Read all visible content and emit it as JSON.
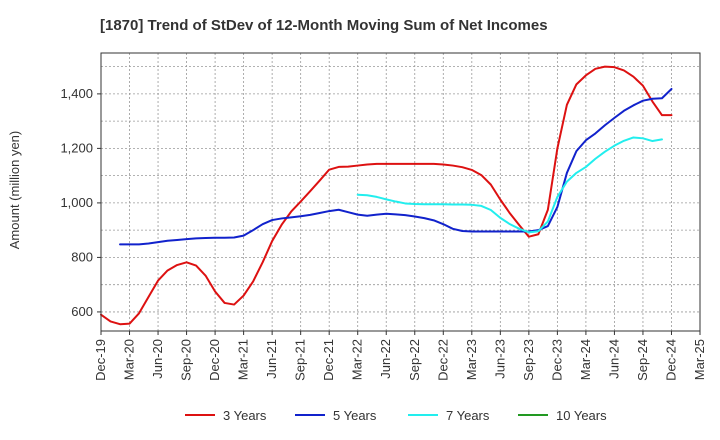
{
  "chart_data": {
    "type": "line",
    "title": "[1870]  Trend of StDev of 12-Month Moving Sum of Net Incomes",
    "xlabel": "",
    "ylabel": "Amount (million yen)",
    "ylim": [
      530,
      1550
    ],
    "y_ticks": [
      600,
      800,
      1000,
      1200,
      1400
    ],
    "y_tick_labels": [
      "600",
      "800",
      "1,000",
      "1,200",
      "1,400"
    ],
    "x_tick_labels": [
      "Dec-19",
      "Mar-20",
      "Jun-20",
      "Sep-20",
      "Dec-20",
      "Mar-21",
      "Jun-21",
      "Sep-21",
      "Dec-21",
      "Mar-22",
      "Jun-22",
      "Sep-22",
      "Dec-22",
      "Mar-23",
      "Jun-23",
      "Sep-23",
      "Dec-23",
      "Mar-24",
      "Jun-24",
      "Sep-24",
      "Dec-24",
      "Mar-25"
    ],
    "x_range_months": [
      "Dec-19",
      "Mar-25"
    ],
    "grid": true,
    "legend_position": "bottom",
    "series": [
      {
        "name": "3 Years",
        "color": "#dd1111",
        "start": "Dec-19",
        "values": [
          590,
          565,
          555,
          557,
          595,
          655,
          715,
          752,
          772,
          782,
          770,
          733,
          675,
          633,
          627,
          660,
          712,
          782,
          860,
          920,
          968,
          1005,
          1043,
          1082,
          1122,
          1132,
          1133,
          1137,
          1141,
          1143,
          1143,
          1143,
          1143,
          1143,
          1143,
          1143,
          1141,
          1137,
          1131,
          1121,
          1102,
          1067,
          1012,
          962,
          918,
          876,
          885,
          975,
          1200,
          1360,
          1435,
          1468,
          1492,
          1500,
          1498,
          1486,
          1463,
          1430,
          1372,
          1322,
          1322
        ]
      },
      {
        "name": "5 Years",
        "color": "#1122cc",
        "start": "Dec-19",
        "values": [
          null,
          null,
          848,
          848,
          848,
          851,
          856,
          861,
          864,
          867,
          870,
          871,
          872,
          872,
          873,
          880,
          900,
          922,
          937,
          943,
          947,
          951,
          956,
          963,
          970,
          975,
          966,
          957,
          953,
          957,
          960,
          958,
          955,
          950,
          944,
          936,
          922,
          905,
          897,
          895,
          895,
          895,
          895,
          895,
          895,
          895,
          900,
          915,
          985,
          1110,
          1190,
          1230,
          1255,
          1285,
          1312,
          1338,
          1358,
          1375,
          1382,
          1384,
          1418
        ]
      },
      {
        "name": "7 Years",
        "color": "#22eeee",
        "start": "Dec-19",
        "values": [
          null,
          null,
          null,
          null,
          null,
          null,
          null,
          null,
          null,
          null,
          null,
          null,
          null,
          null,
          null,
          null,
          null,
          null,
          null,
          null,
          null,
          null,
          null,
          null,
          null,
          null,
          null,
          1030,
          1028,
          1022,
          1013,
          1005,
          998,
          996,
          995,
          995,
          995,
          994,
          994,
          993,
          989,
          974,
          945,
          922,
          905,
          892,
          896,
          932,
          1022,
          1078,
          1110,
          1132,
          1162,
          1188,
          1210,
          1228,
          1240,
          1237,
          1227,
          1233,
          null
        ]
      },
      {
        "name": "10 Years",
        "color": "#229922",
        "start": "Dec-19",
        "values": []
      }
    ]
  }
}
